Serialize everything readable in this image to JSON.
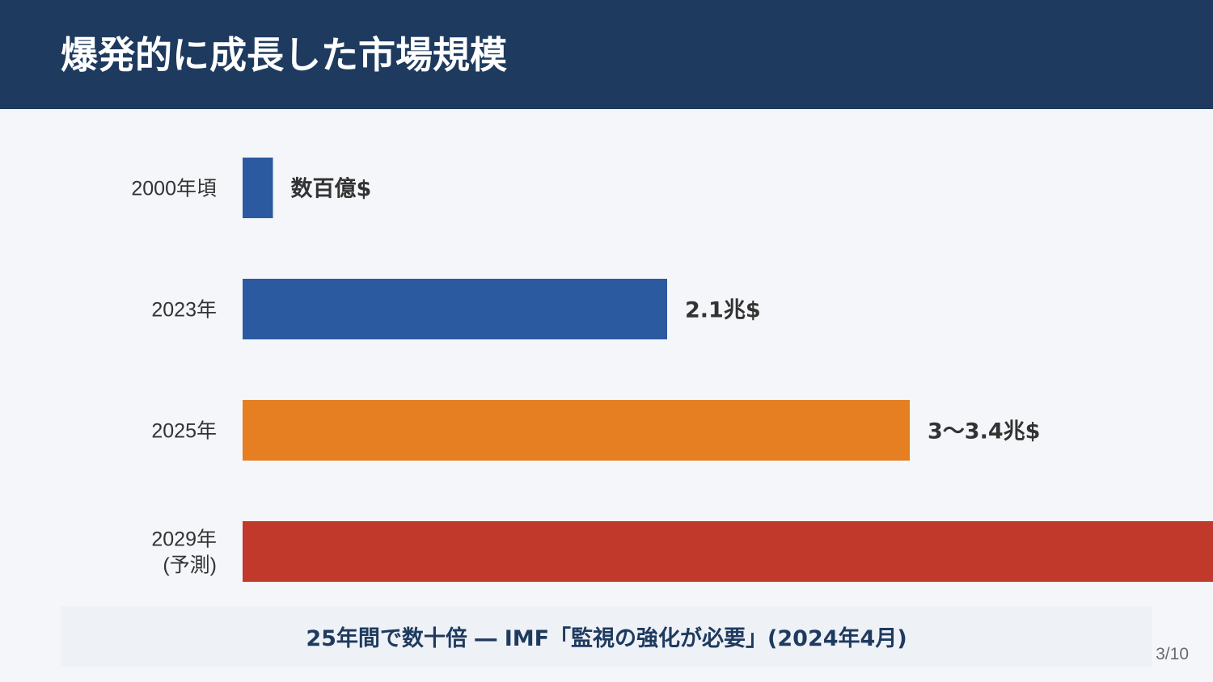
{
  "slide": {
    "title": "爆発的に成長した市場規模",
    "footer_note": "25年間で数十倍 ― IMF「監視の強化が必要」(2024年4月)",
    "page_number": "3/10"
  },
  "chart_data": {
    "type": "bar",
    "orientation": "horizontal",
    "categories": [
      "2000年頃",
      "2023年",
      "2025年",
      "2029年\n(予測)"
    ],
    "values": [
      0.15,
      2.1,
      3.3,
      5.0
    ],
    "value_labels": [
      "数百億$",
      "2.1兆$",
      "3〜3.4兆$",
      ""
    ],
    "colors": [
      "#2b5aa0",
      "#2b5aa0",
      "#e67e22",
      "#c0392b"
    ],
    "xlim": [
      0,
      4.8
    ],
    "grid": false
  }
}
